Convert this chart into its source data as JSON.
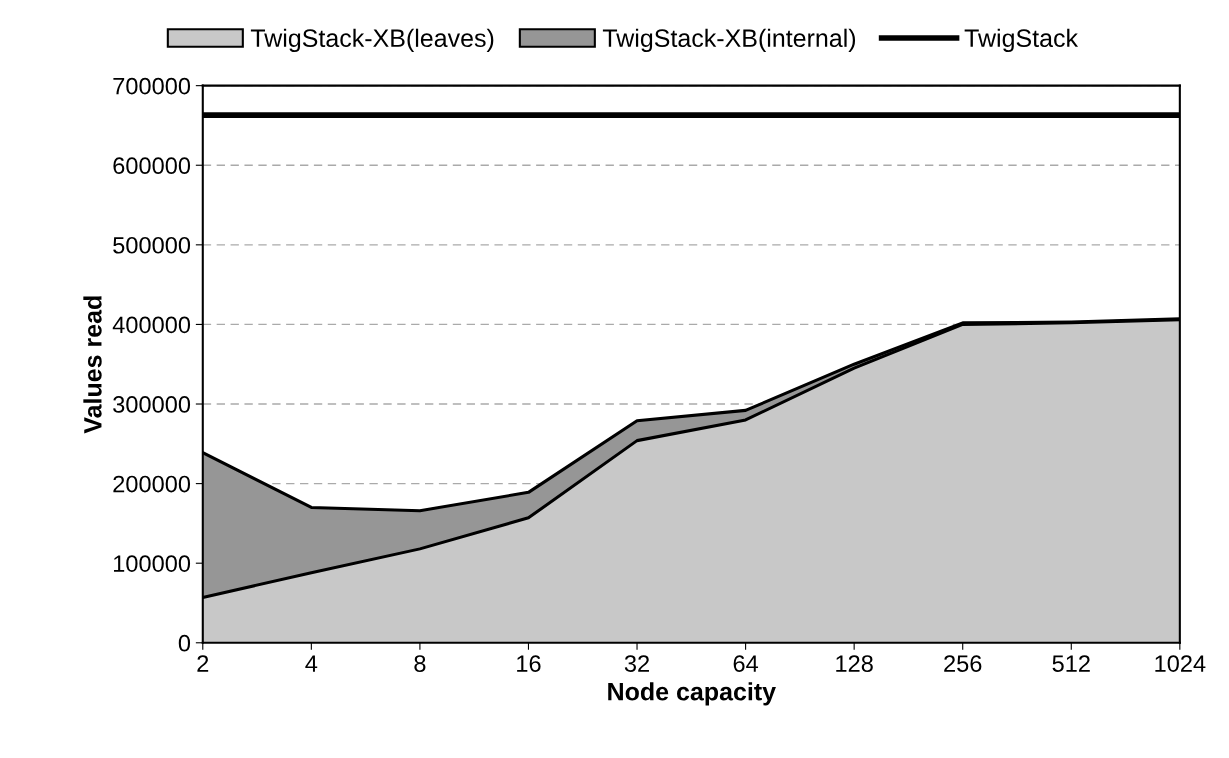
{
  "chart_data": {
    "type": "area",
    "stacked": true,
    "xlabel": "Node capacity",
    "ylabel": "Values read",
    "categories": [
      "2",
      "4",
      "8",
      "16",
      "32",
      "64",
      "128",
      "256",
      "512",
      "1024"
    ],
    "ylim": [
      0,
      700000
    ],
    "yticks": [
      0,
      100000,
      200000,
      300000,
      400000,
      500000,
      600000,
      700000
    ],
    "grid": "y",
    "legend": "top",
    "series": [
      {
        "name": "TwigStack-XB(leaves)",
        "color": "#c8c8c8",
        "values": [
          57000,
          88000,
          118000,
          157000,
          254000,
          280000,
          345000,
          400000,
          402000,
          406000
        ]
      },
      {
        "name": "TwigStack-XB(internal)",
        "color": "#969696",
        "values": [
          182000,
          82000,
          48000,
          32000,
          25000,
          12000,
          5000,
          2000,
          1000,
          1000
        ]
      },
      {
        "name": "TwigStack",
        "type": "line",
        "color": "#000000",
        "values": [
          663000,
          663000,
          663000,
          663000,
          663000,
          663000,
          663000,
          663000,
          663000,
          663000
        ]
      }
    ]
  }
}
